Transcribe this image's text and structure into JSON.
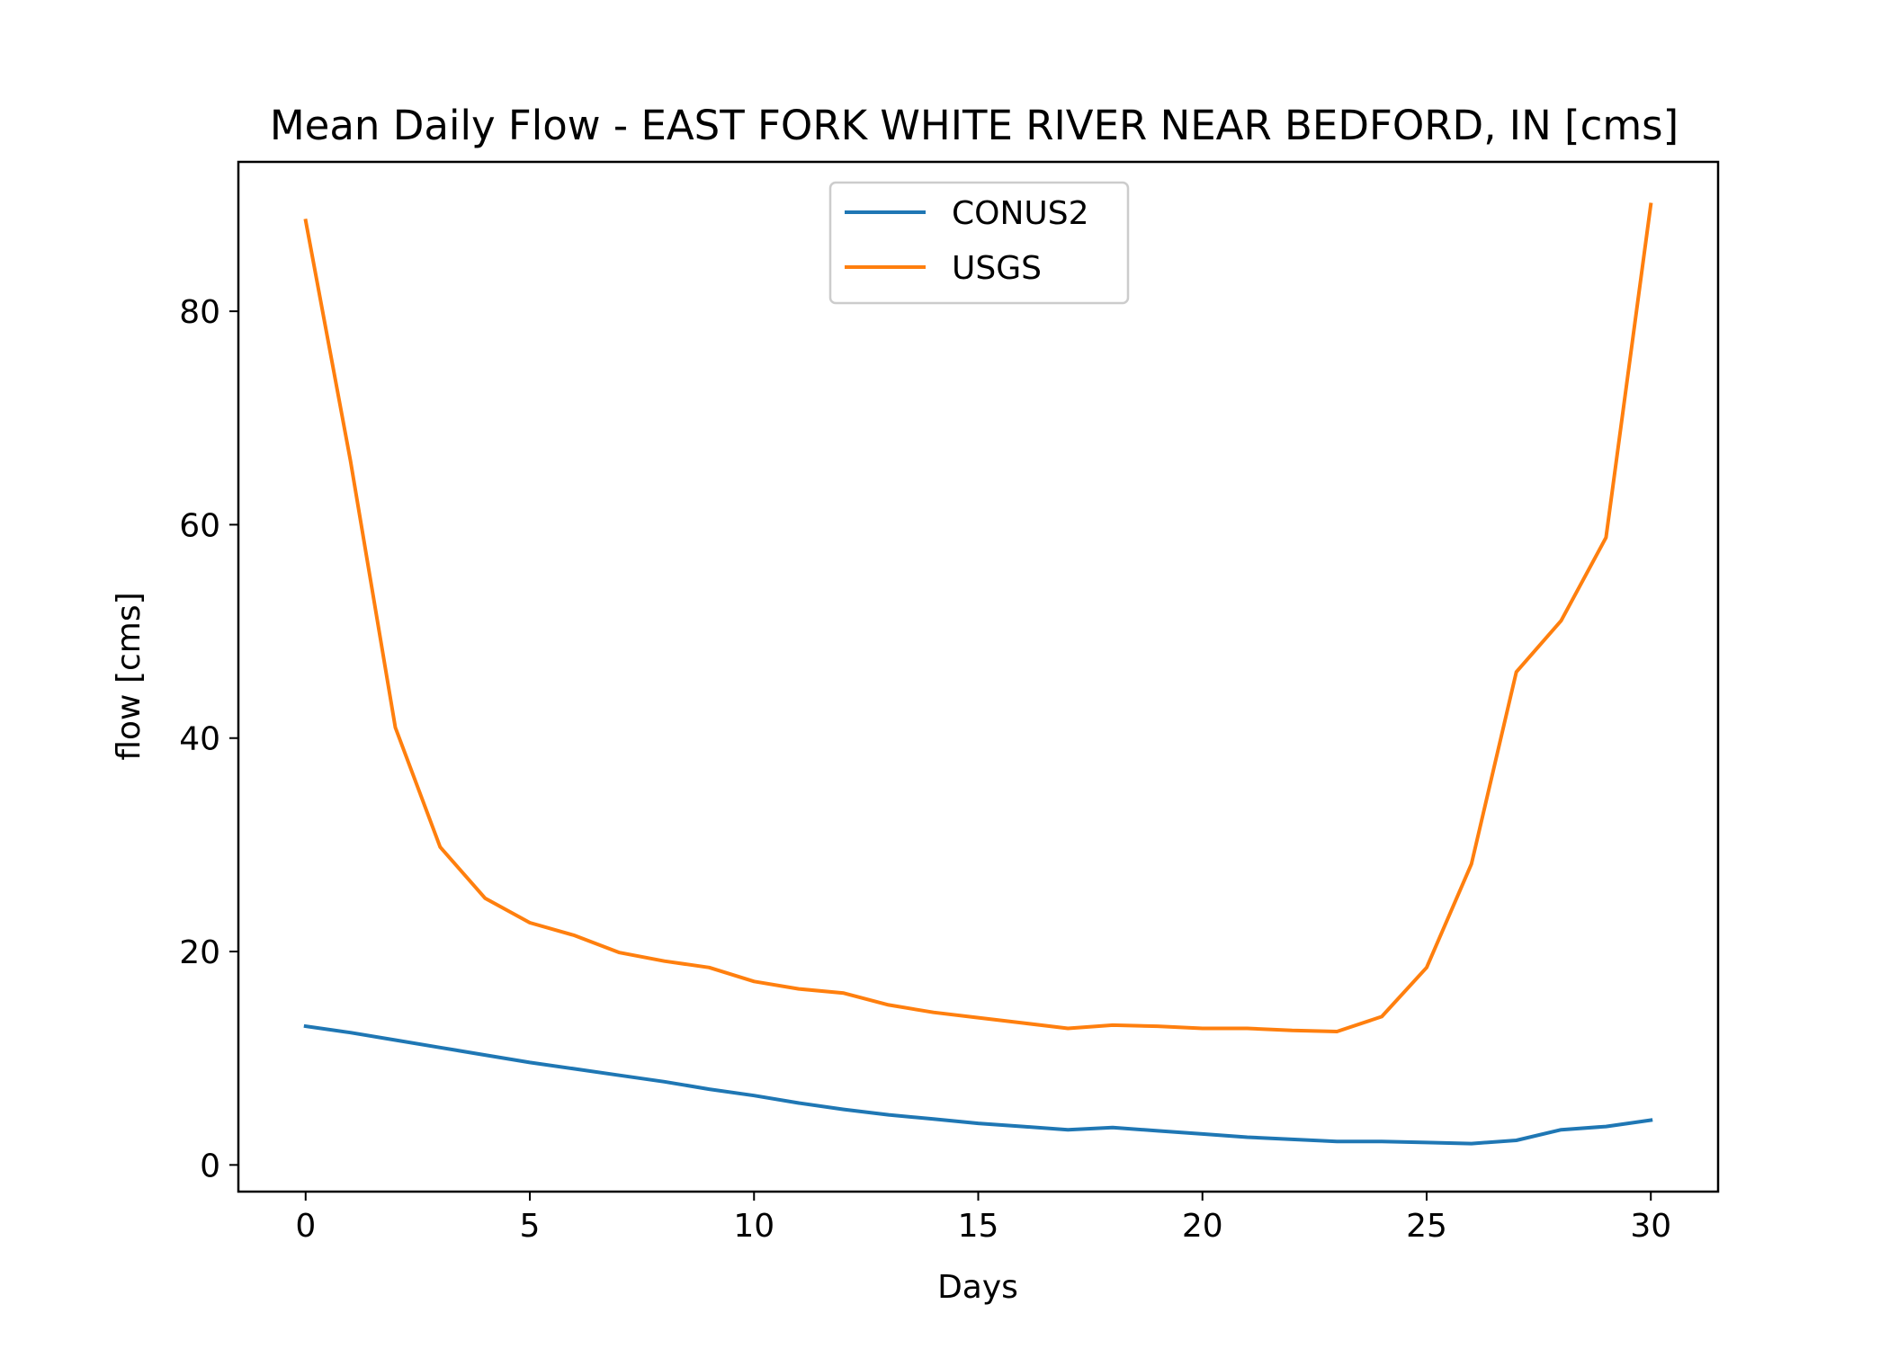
{
  "chart_data": {
    "type": "line",
    "title": "Mean Daily Flow - EAST FORK WHITE RIVER NEAR BEDFORD, IN [cms]",
    "xlabel": "Days",
    "ylabel": "flow [cms]",
    "xlim": [
      -1.5,
      31.5
    ],
    "ylim": [
      -2.5,
      94
    ],
    "xticks": [
      0,
      5,
      10,
      15,
      20,
      25,
      30
    ],
    "yticks": [
      0,
      20,
      40,
      60,
      80
    ],
    "grid": false,
    "legend_position": "top-center",
    "x": [
      0,
      1,
      2,
      3,
      4,
      5,
      6,
      7,
      8,
      9,
      10,
      11,
      12,
      13,
      14,
      15,
      16,
      17,
      18,
      19,
      20,
      21,
      22,
      23,
      24,
      25,
      26,
      27,
      28,
      29,
      30
    ],
    "series": [
      {
        "name": "CONUS2",
        "color": "#1f77b4",
        "values": [
          13.0,
          12.4,
          11.7,
          11.0,
          10.3,
          9.6,
          9.0,
          8.4,
          7.8,
          7.1,
          6.5,
          5.8,
          5.2,
          4.7,
          4.3,
          3.9,
          3.6,
          3.3,
          3.5,
          3.2,
          2.9,
          2.6,
          2.4,
          2.2,
          2.2,
          2.1,
          2.0,
          2.3,
          3.3,
          3.6,
          4.2
        ]
      },
      {
        "name": "USGS",
        "color": "#ff7f0e",
        "values": [
          88.5,
          66.0,
          41.0,
          29.8,
          25.0,
          22.7,
          21.5,
          19.9,
          19.1,
          18.5,
          17.2,
          16.5,
          16.1,
          15.0,
          14.3,
          13.8,
          13.3,
          12.8,
          13.1,
          13.0,
          12.8,
          12.8,
          12.6,
          12.5,
          13.9,
          18.5,
          28.2,
          46.2,
          51.0,
          58.8,
          90.0
        ]
      }
    ]
  }
}
